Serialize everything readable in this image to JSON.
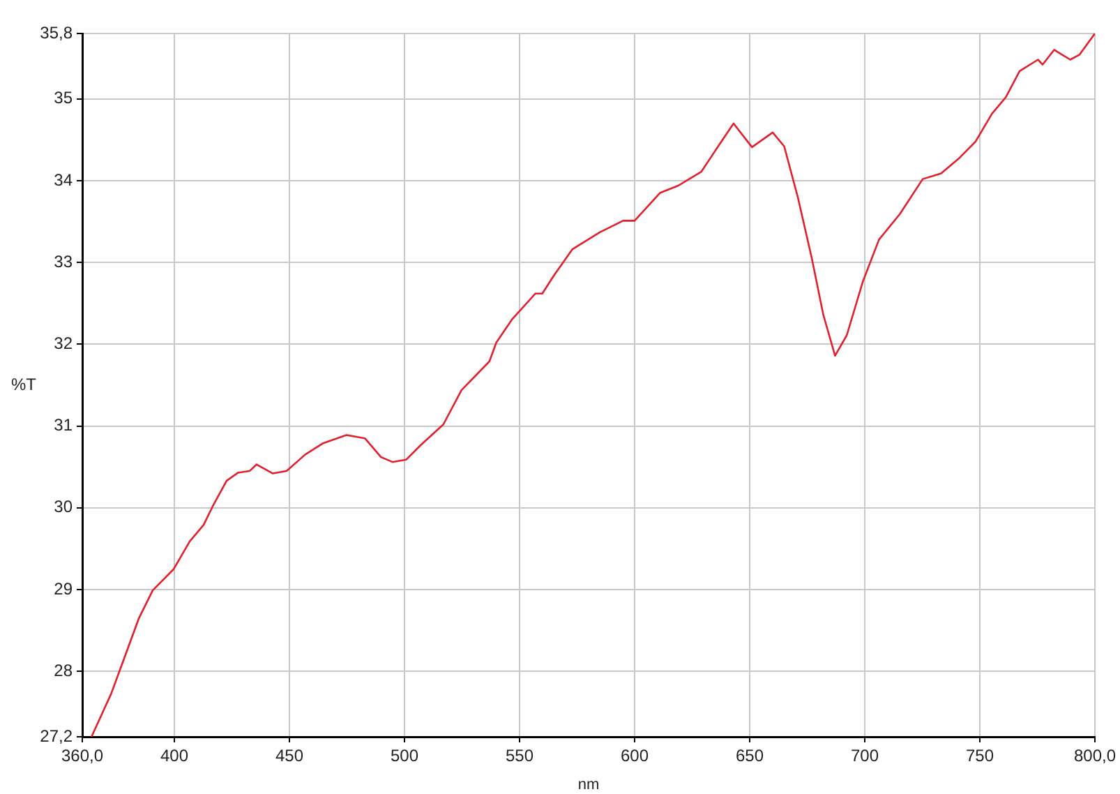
{
  "chart_data": {
    "type": "line",
    "xlabel": "nm",
    "ylabel": "%T",
    "xlim": [
      360,
      800
    ],
    "ylim": [
      27.2,
      35.8
    ],
    "xticks": [
      {
        "value": 360,
        "label": "360,0"
      },
      400,
      450,
      500,
      550,
      600,
      650,
      700,
      750,
      {
        "value": 800,
        "label": "800,0"
      }
    ],
    "yticks": [
      {
        "value": 27.2,
        "label": "27,2"
      },
      28,
      29,
      30,
      31,
      32,
      33,
      34,
      35,
      {
        "value": 35.8,
        "label": "35,8"
      }
    ],
    "grid": true,
    "series": [
      {
        "color": "#e0202e",
        "x": [
          364,
          372.6,
          378.6,
          384.6,
          390.6,
          399.7,
          406.7,
          412.7,
          416.7,
          422.7,
          427.7,
          432.7,
          435.7,
          442.8,
          448.8,
          456.8,
          464.7,
          474.8,
          482.8,
          489.8,
          494.8,
          500.8,
          506.8,
          516.9,
          524.8,
          536.9,
          539.9,
          546.9,
          556.9,
          559.9,
          564.9,
          572.9,
          584.9,
          595,
          600,
          611,
          619,
          629,
          637,
          643,
          651,
          660,
          665,
          671,
          677,
          682,
          687.1,
          692.2,
          699.1,
          706.2,
          715.2,
          725.2,
          733.2,
          741.2,
          748.2,
          755.3,
          761.3,
          767.3,
          775.3,
          777.3,
          782.3,
          789.3,
          793.3,
          800
        ],
        "values": [
          27.2,
          27.73,
          28.19,
          28.65,
          28.99,
          29.25,
          29.59,
          29.79,
          30.02,
          30.33,
          30.43,
          30.45,
          30.53,
          30.42,
          30.45,
          30.65,
          30.79,
          30.89,
          30.85,
          30.62,
          30.56,
          30.59,
          30.76,
          31.02,
          31.44,
          31.79,
          32.02,
          32.31,
          32.62,
          32.62,
          32.84,
          33.16,
          33.37,
          33.51,
          33.51,
          33.85,
          33.94,
          34.11,
          34.45,
          34.7,
          34.41,
          34.59,
          34.42,
          33.79,
          33.05,
          32.36,
          31.86,
          32.11,
          32.76,
          33.28,
          33.59,
          34.02,
          34.09,
          34.28,
          34.48,
          34.82,
          35.02,
          35.34,
          35.48,
          35.42,
          35.6,
          35.48,
          35.54,
          35.8
        ]
      }
    ]
  }
}
